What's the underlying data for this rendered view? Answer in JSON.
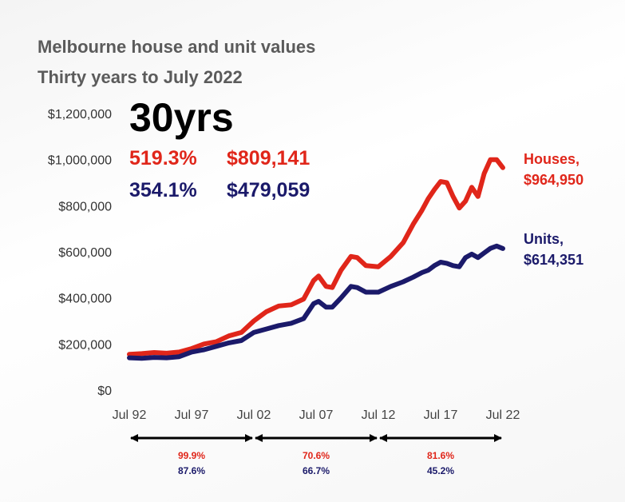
{
  "chart_data": {
    "type": "line",
    "title": "Melbourne house and unit values",
    "subtitle": "Thirty years to July 2022",
    "ylim": [
      0,
      1200000
    ],
    "yticks": [
      "$0",
      "$200,000",
      "$400,000",
      "$600,000",
      "$800,000",
      "$1,000,000",
      "$1,200,000"
    ],
    "ytick_values": [
      0,
      200000,
      400000,
      600000,
      800000,
      1000000,
      1200000
    ],
    "xticks": [
      "Jul 92",
      "Jul 97",
      "Jul 02",
      "Jul 07",
      "Jul 12",
      "Jul 17",
      "Jul 22"
    ],
    "xtick_values": [
      1992.5,
      1997.5,
      2002.5,
      2007.5,
      2012.5,
      2017.5,
      2022.5
    ],
    "xlim": [
      1992.5,
      2022.5
    ],
    "headline": {
      "label": "30yrs",
      "houses_growth": "519.3%",
      "houses_change": "$809,141",
      "units_growth": "354.1%",
      "units_change": "$479,059"
    },
    "series": [
      {
        "name": "Houses",
        "end_label": "Houses,",
        "end_value": "$964,950",
        "color": "#e0261a",
        "x": [
          1992.5,
          1993.5,
          1994.5,
          1995.5,
          1996.5,
          1997.5,
          1998.5,
          1999.5,
          2000.5,
          2001.5,
          2002.5,
          2003.0,
          2003.5,
          2004.5,
          2005.5,
          2006.5,
          2007.3,
          2007.7,
          2008.3,
          2008.8,
          2009.5,
          2010.3,
          2010.8,
          2011.5,
          2012.5,
          2013.5,
          2014.5,
          2015.3,
          2016.0,
          2016.5,
          2017.0,
          2017.5,
          2018.0,
          2018.5,
          2019.0,
          2019.5,
          2020.0,
          2020.5,
          2021.0,
          2021.5,
          2022.0,
          2022.5
        ],
        "y": [
          155000,
          158000,
          163000,
          160000,
          165000,
          180000,
          200000,
          210000,
          235000,
          250000,
          300000,
          320000,
          340000,
          365000,
          370000,
          395000,
          475000,
          495000,
          450000,
          445000,
          520000,
          580000,
          575000,
          540000,
          535000,
          580000,
          640000,
          720000,
          780000,
          830000,
          870000,
          905000,
          900000,
          840000,
          790000,
          820000,
          880000,
          840000,
          940000,
          1000000,
          1000000,
          964950
        ]
      },
      {
        "name": "Units",
        "end_label": "Units,",
        "end_value": "$614,351",
        "color": "#1b1a6a",
        "x": [
          1992.5,
          1993.5,
          1994.5,
          1995.5,
          1996.5,
          1997.5,
          1998.5,
          1999.5,
          2000.5,
          2001.5,
          2002.5,
          2003.5,
          2004.5,
          2005.5,
          2006.5,
          2007.3,
          2007.7,
          2008.3,
          2008.8,
          2009.5,
          2010.3,
          2010.8,
          2011.5,
          2012.5,
          2013.5,
          2014.5,
          2015.3,
          2016.0,
          2016.5,
          2017.0,
          2017.5,
          2018.0,
          2018.5,
          2019.0,
          2019.5,
          2020.0,
          2020.5,
          2021.0,
          2021.5,
          2022.0,
          2022.5
        ],
        "y": [
          140000,
          138000,
          142000,
          140000,
          145000,
          165000,
          175000,
          190000,
          205000,
          215000,
          250000,
          265000,
          280000,
          290000,
          310000,
          375000,
          385000,
          360000,
          360000,
          400000,
          450000,
          445000,
          425000,
          425000,
          450000,
          470000,
          490000,
          510000,
          520000,
          540000,
          555000,
          550000,
          540000,
          535000,
          575000,
          590000,
          575000,
          595000,
          615000,
          625000,
          614351
        ]
      }
    ],
    "periods": [
      {
        "from": "Jul 92",
        "to": "Jul 02",
        "houses_growth": "99.9%",
        "units_growth": "87.6%"
      },
      {
        "from": "Jul 02",
        "to": "Jul 12",
        "houses_growth": "70.6%",
        "units_growth": "66.7%"
      },
      {
        "from": "Jul 12",
        "to": "Jul 22",
        "houses_growth": "81.6%",
        "units_growth": "45.2%"
      }
    ],
    "grid": false,
    "legend": "none"
  }
}
